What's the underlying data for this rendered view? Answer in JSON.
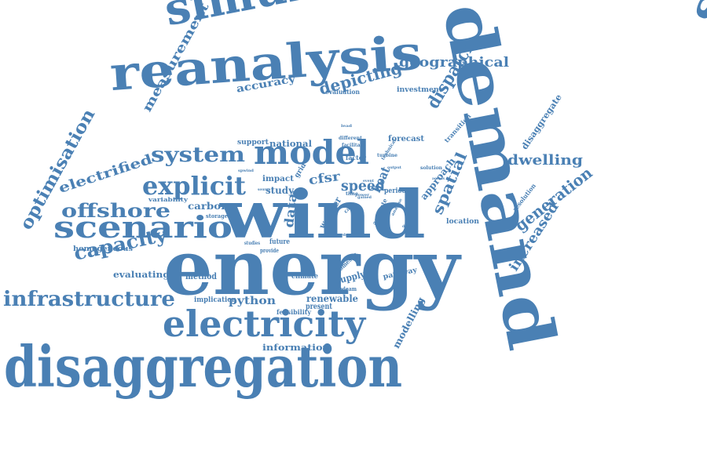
{
  "colors": {
    "word": "#4a80b4",
    "background": "#ffffff"
  },
  "words": [
    "energy",
    "wind",
    "demand",
    "spatiotemporal",
    "disaggregation",
    "reanalysis",
    "simulation",
    "electricity",
    "scenario",
    "model",
    "system",
    "explicit",
    "infrastructure",
    "optimisation",
    "offshore",
    "capacity",
    "geographical",
    "dispatch",
    "depicting",
    "spatial",
    "measurement",
    "dwelling",
    "generation",
    "increased",
    "electrified",
    "disaggregate",
    "speed",
    "data",
    "python",
    "renewable",
    "modelling",
    "accuracy",
    "heat",
    "evaluating",
    "method",
    "information",
    "carbon",
    "homogeneous",
    "cfsr",
    "study",
    "approach",
    "weather",
    "supply",
    "pathway",
    "present",
    "feasibility",
    "implication",
    "national",
    "support",
    "forecast",
    "investment",
    "evaluation",
    "transition",
    "different",
    "facilitate",
    "factor",
    "technical",
    "turbine",
    "solution",
    "resolution",
    "location",
    "climate",
    "domestic",
    "spdeam",
    "impact",
    "grid",
    "period",
    "variability",
    "storage",
    "future",
    "provide",
    "studies",
    "term",
    "time",
    "source",
    "spwind",
    "accurate",
    "case",
    "output",
    "event",
    "order",
    "depict",
    "analyse",
    "power",
    "lead",
    "across",
    "gained"
  ]
}
